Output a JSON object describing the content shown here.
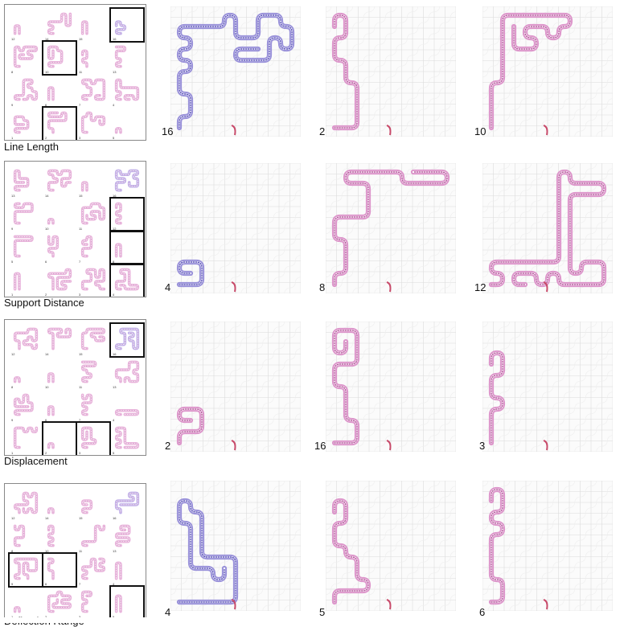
{
  "colors": {
    "grid": "#dcdcdc",
    "path_pink": "#d98bc5",
    "path_blue": "#8f86d6",
    "path_red": "#c84a6a",
    "frame": "#111111"
  },
  "rows": [
    {
      "label": "Line Length",
      "thumb_labels": [
        "12",
        "14",
        "15",
        "16",
        "8",
        "10",
        "11",
        "13",
        "9",
        "6",
        "7",
        "4",
        "1",
        "2",
        "3",
        "5"
      ],
      "panels": [
        {
          "label": "16",
          "tint": "blue"
        },
        {
          "label": "2",
          "tint": "pink"
        },
        {
          "label": "10",
          "tint": "pink"
        }
      ]
    },
    {
      "label": "Support Distance",
      "thumb_labels": [
        "13",
        "14",
        "15",
        "16",
        "9",
        "10",
        "11",
        "12",
        "5",
        "6",
        "7",
        "8",
        "1",
        "2",
        "3",
        "4"
      ],
      "panels": [
        {
          "label": "4",
          "tint": "blue"
        },
        {
          "label": "8",
          "tint": "pink"
        },
        {
          "label": "12",
          "tint": "pink"
        }
      ]
    },
    {
      "label": "Displacement",
      "thumb_labels": [
        "12",
        "14",
        "15",
        "16",
        "8",
        "10",
        "11",
        "13",
        "9",
        "6",
        "7",
        "4",
        "1",
        "2",
        "3",
        "5"
      ],
      "panels": [
        {
          "label": "2",
          "tint": "pink"
        },
        {
          "label": "16",
          "tint": "pink"
        },
        {
          "label": "3",
          "tint": "pink"
        }
      ]
    },
    {
      "label": "Deflection Range",
      "thumb_labels": [
        "12",
        "14",
        "15",
        "16",
        "8",
        "10",
        "11",
        "13",
        "9",
        "6",
        "7",
        "4",
        "1",
        "2",
        "3",
        "5"
      ],
      "panels": [
        {
          "label": "4",
          "tint": "blue"
        },
        {
          "label": "5",
          "tint": "pink"
        },
        {
          "label": "6",
          "tint": "pink"
        }
      ]
    }
  ]
}
